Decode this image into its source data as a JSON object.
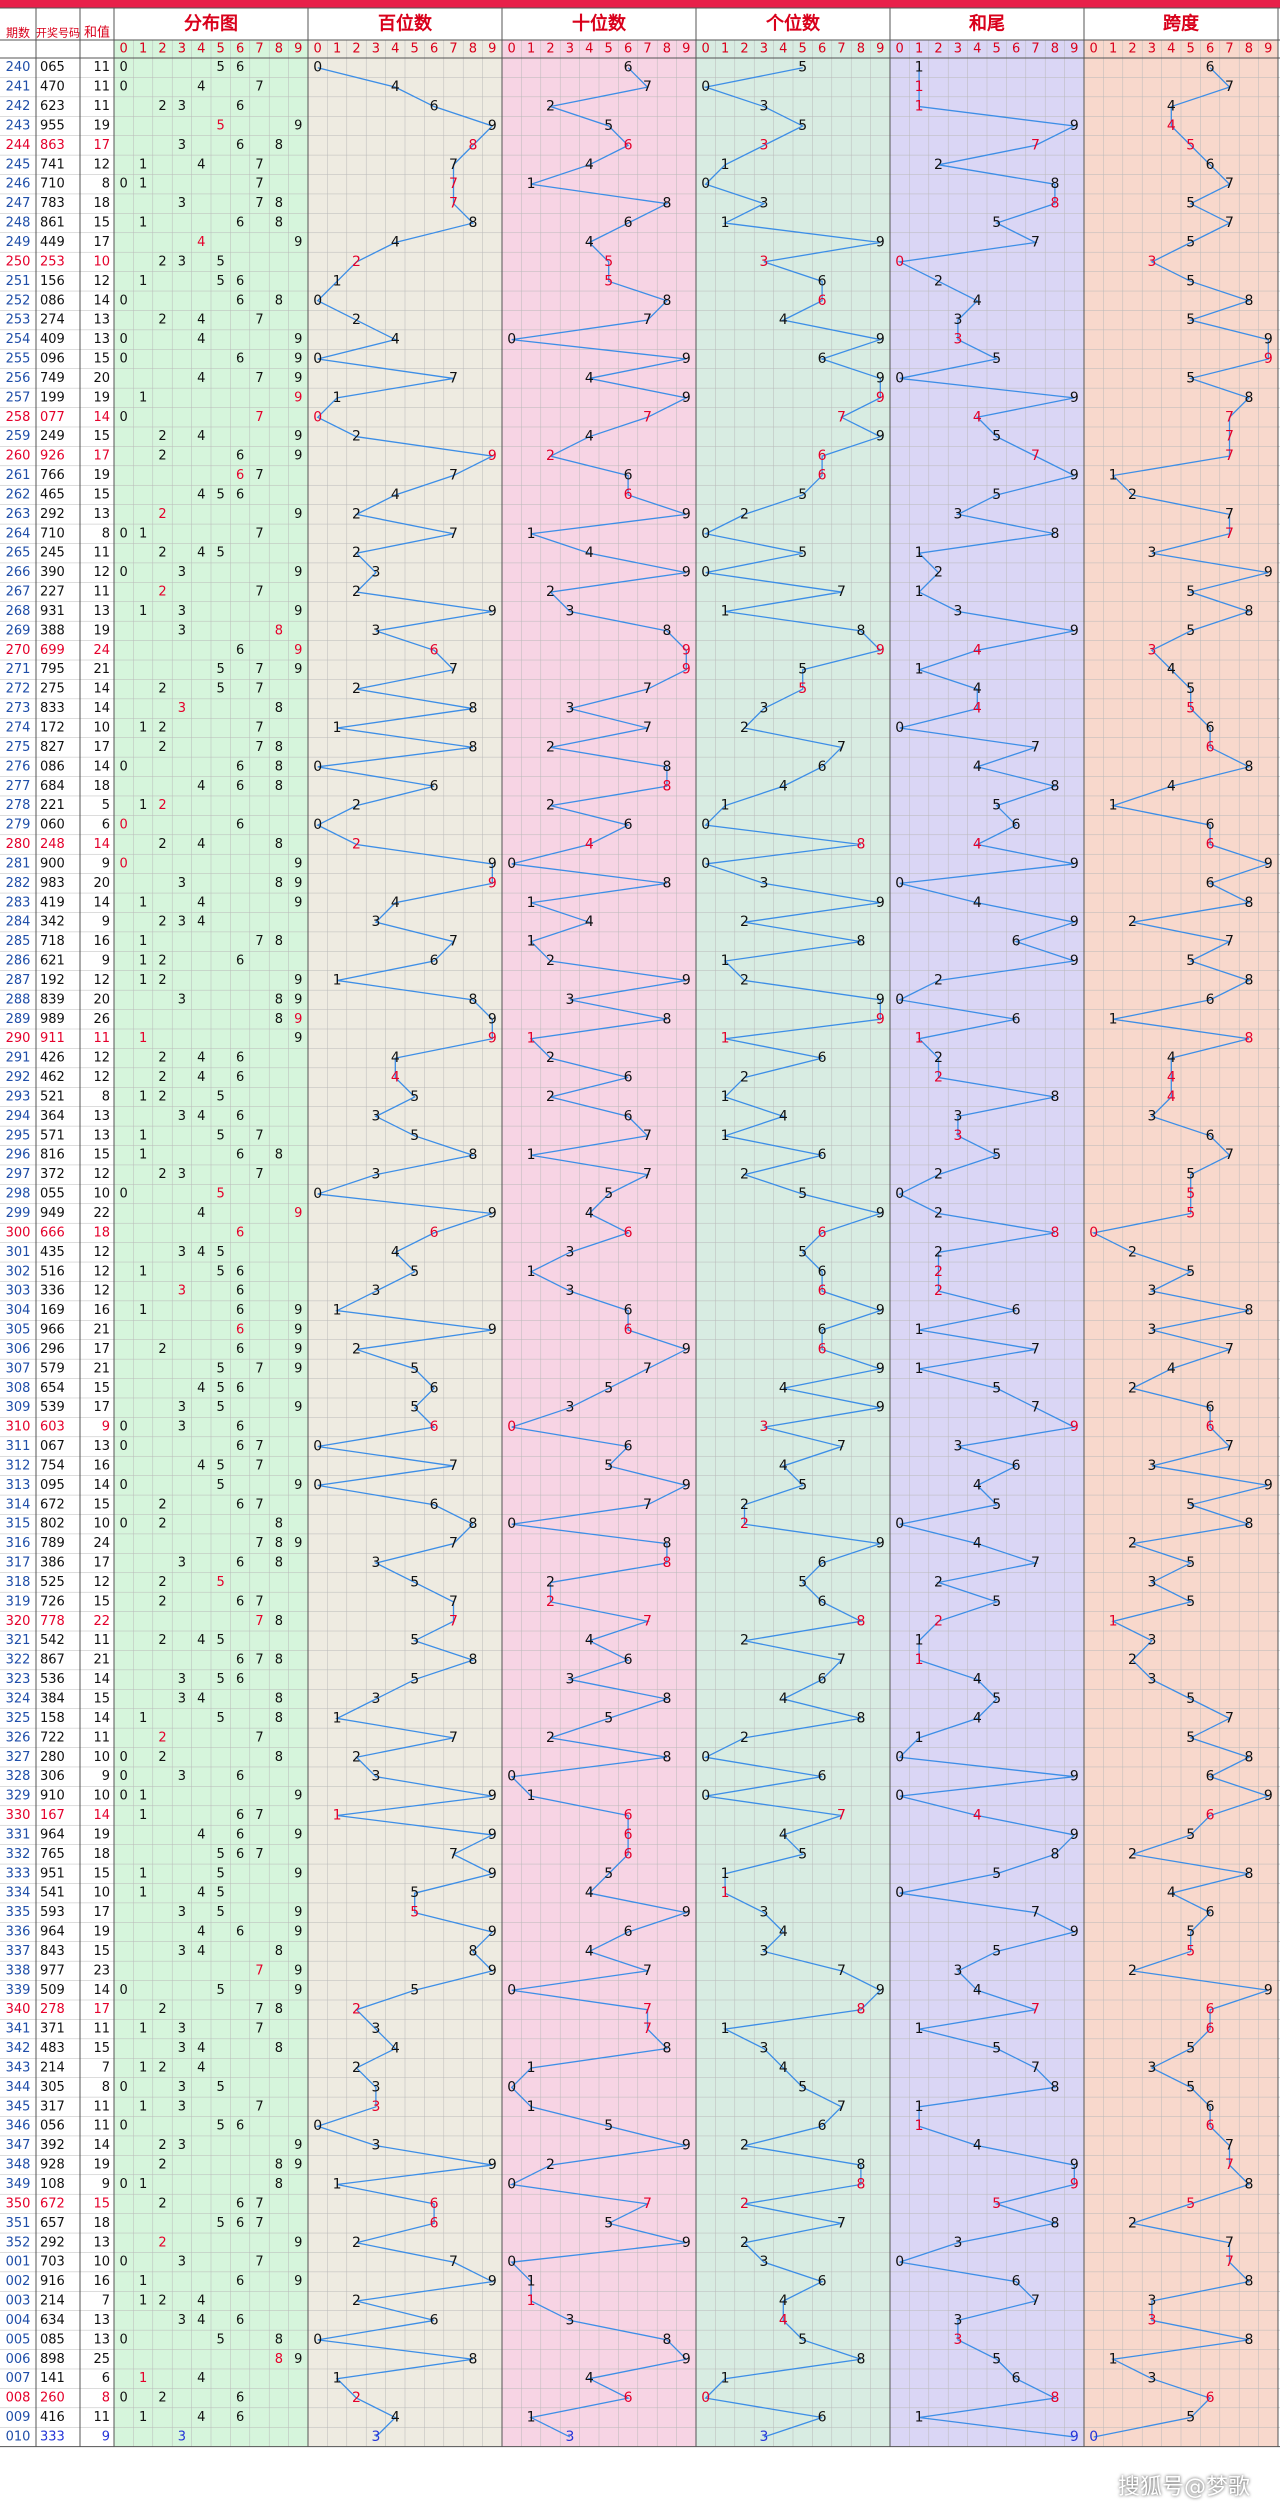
{
  "chart_data": {
    "type": "table",
    "title": "",
    "header": {
      "period": "期数",
      "draw": "开奖号码",
      "sum": "和值",
      "sections": [
        "分布图",
        "百位数",
        "十位数",
        "个位数",
        "和尾",
        "跨度"
      ],
      "digits": [
        "0",
        "1",
        "2",
        "3",
        "4",
        "5",
        "6",
        "7",
        "8",
        "9"
      ]
    },
    "periods": [
      "240",
      "241",
      "242",
      "243",
      "244",
      "245",
      "246",
      "247",
      "248",
      "249",
      "250",
      "251",
      "252",
      "253",
      "254",
      "255",
      "256",
      "257",
      "258",
      "259",
      "260",
      "261",
      "262",
      "263",
      "264",
      "265",
      "266",
      "267",
      "268",
      "269",
      "270",
      "271",
      "272",
      "273",
      "274",
      "275",
      "276",
      "277",
      "278",
      "279",
      "280",
      "281",
      "282",
      "283",
      "284",
      "285",
      "286",
      "287",
      "288",
      "289",
      "290",
      "291",
      "292",
      "293",
      "294",
      "295",
      "296",
      "297",
      "298",
      "299",
      "300",
      "301",
      "302",
      "303",
      "304",
      "305",
      "306",
      "307",
      "308",
      "309",
      "310",
      "311",
      "312",
      "313",
      "314",
      "315",
      "316",
      "317",
      "318",
      "319",
      "320",
      "321",
      "322",
      "323",
      "324",
      "325",
      "326",
      "327",
      "328",
      "329",
      "330",
      "331",
      "332",
      "333",
      "334",
      "335",
      "336",
      "337",
      "338",
      "339",
      "340",
      "341",
      "342",
      "343",
      "344",
      "345",
      "346",
      "347",
      "348",
      "349",
      "350",
      "351",
      "352",
      "001",
      "002",
      "003",
      "004",
      "005",
      "006",
      "007",
      "008",
      "009",
      "010"
    ],
    "draws": [
      "065",
      "470",
      "623",
      "955",
      "863",
      "741",
      "710",
      "783",
      "861",
      "449",
      "253",
      "156",
      "086",
      "274",
      "409",
      "096",
      "749",
      "199",
      "077",
      "249",
      "926",
      "766",
      "465",
      "292",
      "710",
      "245",
      "390",
      "227",
      "931",
      "388",
      "699",
      "795",
      "275",
      "833",
      "172",
      "827",
      "086",
      "684",
      "221",
      "060",
      "248",
      "900",
      "983",
      "419",
      "342",
      "718",
      "621",
      "192",
      "839",
      "989",
      "911",
      "426",
      "462",
      "521",
      "364",
      "571",
      "816",
      "372",
      "055",
      "949",
      "666",
      "435",
      "516",
      "336",
      "169",
      "966",
      "296",
      "579",
      "654",
      "539",
      "603",
      "067",
      "754",
      "095",
      "672",
      "802",
      "789",
      "386",
      "525",
      "726",
      "778",
      "542",
      "867",
      "536",
      "384",
      "158",
      "722",
      "280",
      "306",
      "910",
      "167",
      "964",
      "765",
      "951",
      "541",
      "593",
      "964",
      "843",
      "977",
      "509",
      "278",
      "371",
      "483",
      "214",
      "305",
      "317",
      "056",
      "392",
      "928",
      "108",
      "672",
      "657",
      "292",
      "703",
      "916",
      "214",
      "634",
      "085",
      "898",
      "141",
      "260",
      "416",
      "333"
    ],
    "sums": [
      11,
      11,
      11,
      19,
      17,
      12,
      8,
      18,
      15,
      17,
      10,
      12,
      14,
      13,
      13,
      15,
      20,
      19,
      14,
      15,
      17,
      19,
      15,
      13,
      8,
      11,
      12,
      11,
      13,
      19,
      24,
      21,
      14,
      14,
      10,
      17,
      14,
      18,
      5,
      6,
      14,
      9,
      20,
      14,
      9,
      16,
      9,
      12,
      20,
      26,
      11,
      12,
      12,
      8,
      13,
      13,
      15,
      12,
      10,
      22,
      18,
      12,
      12,
      12,
      16,
      21,
      17,
      21,
      15,
      17,
      9,
      13,
      16,
      14,
      15,
      10,
      24,
      17,
      12,
      15,
      22,
      11,
      21,
      14,
      15,
      14,
      11,
      10,
      9,
      10,
      14,
      19,
      18,
      15,
      10,
      17,
      19,
      15,
      23,
      14,
      17,
      11,
      15,
      7,
      8,
      11,
      11,
      14,
      19,
      9,
      15,
      18,
      13,
      10,
      16,
      7,
      13,
      13,
      25,
      6,
      8,
      11,
      9
    ],
    "highlight_rows": [
      4,
      10,
      18,
      20,
      30,
      40,
      50,
      60,
      70,
      80,
      90,
      100,
      110,
      120
    ]
  },
  "colors": {
    "top_bar": "#e8204a",
    "header_text": "#d9001b",
    "period_text": "#1f4ea8",
    "distribution_bg": "#d6f5dc",
    "hundreds_bg": "#eeebe1",
    "tens_bg": "#f7d4e4",
    "units_bg": "#d8ece2",
    "sum_tail_bg": "#dad6f5",
    "span_bg": "#f8d8cc",
    "grid": "#b9b9b9",
    "row_sep": "#7ec07e",
    "trend_line": "#3d8ee6",
    "mark_normal": "#111111",
    "mark_repeat": "#e4002b",
    "mark_last": "#2535d8"
  },
  "watermark": "搜狐号@梦歌"
}
